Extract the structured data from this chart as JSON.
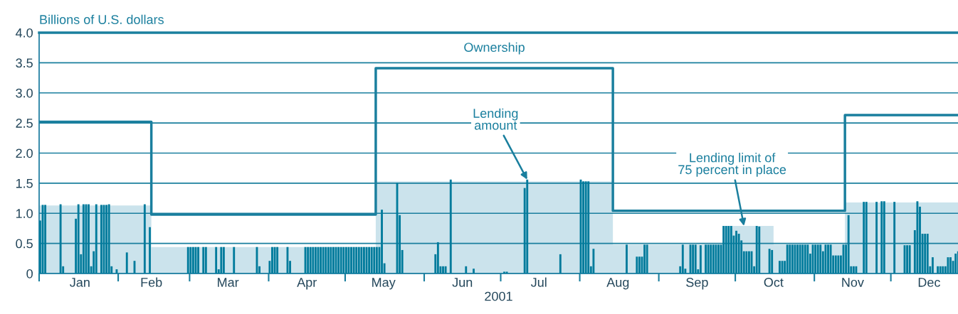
{
  "chart_data": {
    "type": "bar",
    "ylabel": "Billions of U.S. dollars",
    "xlabel": "2001",
    "xlim": [
      "2001-01-01",
      "2001-12-27T08:00"
    ],
    "xticks": [
      {
        "value": "2001-01-01",
        "label": null
      },
      {
        "value": "2001-02-01",
        "label": null
      },
      {
        "value": "2001-03-01",
        "label": null
      },
      {
        "value": "2001-04-01",
        "label": null
      },
      {
        "value": "2001-05-01",
        "label": null
      },
      {
        "value": "2001-06-01",
        "label": null
      },
      {
        "value": "2001-07-01",
        "label": null
      },
      {
        "value": "2001-08-01",
        "label": null
      },
      {
        "value": "2001-09-01",
        "label": null
      },
      {
        "value": "2001-10-01",
        "label": null
      },
      {
        "value": "2001-11-01",
        "label": null
      },
      {
        "value": "2001-12-01",
        "label": null
      },
      {
        "value": "2001-01-17",
        "label": "Jan"
      },
      {
        "value": "2001-02-14",
        "label": "Feb"
      },
      {
        "value": "2001-03-16",
        "label": "Mar"
      },
      {
        "value": "2001-04-16",
        "label": "Apr"
      },
      {
        "value": "2001-05-16",
        "label": "May"
      },
      {
        "value": "2001-06-16",
        "label": "Jun"
      },
      {
        "value": "2001-07-16",
        "label": "Jul"
      },
      {
        "value": "2001-08-16",
        "label": "Aug"
      },
      {
        "value": "2001-09-16",
        "label": "Sep"
      },
      {
        "value": "2001-10-16",
        "label": "Oct"
      },
      {
        "value": "2001-11-16",
        "label": "Nov"
      },
      {
        "value": "2001-12-16",
        "label": "Dec"
      }
    ],
    "ylim": [
      0,
      4
    ],
    "yticks": [
      0,
      0.5,
      {
        "value": 1,
        "label": "1.0"
      },
      1.5,
      {
        "value": 2,
        "label": "2.0"
      },
      2.5,
      {
        "value": 3,
        "label": "3.0"
      },
      3.5,
      {
        "value": 4,
        "label": "4.0"
      }
    ],
    "grid": "y",
    "series": [
      {
        "type": "area",
        "color": "#cbe3ec",
        "x": [
          "2001-01-01",
          "2001-02-14",
          "2001-02-14",
          "2001-05-13",
          "2001-05-13",
          "2001-08-14",
          "2001-08-14",
          "2001-09-26",
          "2001-09-26",
          "2001-10-16",
          "2001-10-16",
          "2001-11-13",
          "2001-11-13",
          "2001-12-27T08:00"
        ],
        "values": [
          1.13,
          1.13,
          0.44,
          0.44,
          1.53,
          1.53,
          0.48,
          0.48,
          0.79,
          0.79,
          0.48,
          0.48,
          1.18,
          1.18
        ]
      },
      {
        "color": "#007b9c",
        "x": [
          "2001-01-01",
          "2001-01-02",
          "2001-01-03",
          "2001-01-09",
          "2001-01-10",
          "2001-01-15",
          "2001-01-16",
          "2001-01-17",
          "2001-01-18",
          "2001-01-19",
          "2001-01-20",
          "2001-01-21",
          "2001-01-22",
          "2001-01-23",
          "2001-01-25",
          "2001-01-26",
          "2001-01-27",
          "2001-01-28",
          "2001-01-29",
          "2001-01-31",
          "2001-02-04",
          "2001-02-07",
          "2001-02-11",
          "2001-02-13",
          "2001-02-28",
          "2001-03-01",
          "2001-03-02",
          "2001-03-03",
          "2001-03-04",
          "2001-03-06",
          "2001-03-07",
          "2001-03-11",
          "2001-03-12",
          "2001-03-13",
          "2001-03-14",
          "2001-03-18",
          "2001-03-27",
          "2001-03-28",
          "2001-04-01",
          "2001-04-02",
          "2001-04-03",
          "2001-04-04",
          "2001-04-08",
          "2001-04-09",
          "2001-04-15",
          "2001-04-16",
          "2001-04-17",
          "2001-04-18",
          "2001-04-19",
          "2001-04-20",
          "2001-04-21",
          "2001-04-22",
          "2001-04-23",
          "2001-04-24",
          "2001-04-25",
          "2001-04-26",
          "2001-04-27",
          "2001-04-28",
          "2001-04-29",
          "2001-04-30",
          "2001-05-01",
          "2001-05-02",
          "2001-05-03",
          "2001-05-04",
          "2001-05-05",
          "2001-05-06",
          "2001-05-07",
          "2001-05-08",
          "2001-05-09",
          "2001-05-10",
          "2001-05-11",
          "2001-05-12",
          "2001-05-13",
          "2001-05-14",
          "2001-05-15",
          "2001-05-16",
          "2001-05-21",
          "2001-05-22",
          "2001-05-23",
          "2001-06-05",
          "2001-06-06",
          "2001-06-07",
          "2001-06-08",
          "2001-06-09",
          "2001-06-11",
          "2001-06-17",
          "2001-06-20",
          "2001-07-02",
          "2001-07-03",
          "2001-07-10",
          "2001-07-11",
          "2001-07-24",
          "2001-08-01",
          "2001-08-02",
          "2001-08-03",
          "2001-08-04",
          "2001-08-05",
          "2001-08-06",
          "2001-08-19",
          "2001-08-23",
          "2001-08-24",
          "2001-08-25",
          "2001-08-26",
          "2001-08-27",
          "2001-09-09",
          "2001-09-10",
          "2001-09-11",
          "2001-09-13",
          "2001-09-14",
          "2001-09-15",
          "2001-09-16",
          "2001-09-17",
          "2001-09-19",
          "2001-09-20",
          "2001-09-21",
          "2001-09-22",
          "2001-09-23",
          "2001-09-24",
          "2001-09-25",
          "2001-09-26",
          "2001-09-27",
          "2001-09-28",
          "2001-09-29",
          "2001-09-30",
          "2001-10-01",
          "2001-10-02",
          "2001-10-03",
          "2001-10-04",
          "2001-10-05",
          "2001-10-06",
          "2001-10-07",
          "2001-10-08",
          "2001-10-09",
          "2001-10-10",
          "2001-10-14",
          "2001-10-15",
          "2001-10-18",
          "2001-10-19",
          "2001-10-20",
          "2001-10-21",
          "2001-10-22",
          "2001-10-23",
          "2001-10-24",
          "2001-10-25",
          "2001-10-26",
          "2001-10-27",
          "2001-10-28",
          "2001-10-29",
          "2001-10-30",
          "2001-10-31",
          "2001-11-01",
          "2001-11-02",
          "2001-11-03",
          "2001-11-04",
          "2001-11-05",
          "2001-11-06",
          "2001-11-07",
          "2001-11-08",
          "2001-11-09",
          "2001-11-10",
          "2001-11-11",
          "2001-11-12",
          "2001-11-13",
          "2001-11-14",
          "2001-11-15",
          "2001-11-16",
          "2001-11-17",
          "2001-11-20",
          "2001-11-21",
          "2001-11-25",
          "2001-11-27",
          "2001-11-28",
          "2001-12-02",
          "2001-12-06",
          "2001-12-07",
          "2001-12-08",
          "2001-12-10",
          "2001-12-11",
          "2001-12-12",
          "2001-12-13",
          "2001-12-14",
          "2001-12-15",
          "2001-12-16",
          "2001-12-17",
          "2001-12-19",
          "2001-12-20",
          "2001-12-21",
          "2001-12-22",
          "2001-12-23",
          "2001-12-24",
          "2001-12-25",
          "2001-12-26",
          "2001-12-27"
        ],
        "values": [
          0.88,
          1.14,
          1.14,
          1.15,
          0.12,
          0.91,
          1.15,
          0.32,
          1.15,
          1.15,
          1.15,
          0.12,
          0.37,
          1.15,
          1.14,
          1.14,
          1.14,
          1.15,
          0.12,
          0.07,
          0.35,
          0.21,
          1.15,
          0.77,
          0.44,
          0.44,
          0.44,
          0.44,
          0.44,
          0.44,
          0.44,
          0.44,
          0.07,
          0.44,
          0.44,
          0.44,
          0.44,
          0.12,
          0.21,
          0.44,
          0.44,
          0.44,
          0.44,
          0.21,
          0.44,
          0.44,
          0.44,
          0.44,
          0.44,
          0.44,
          0.44,
          0.44,
          0.44,
          0.44,
          0.44,
          0.44,
          0.44,
          0.44,
          0.44,
          0.44,
          0.44,
          0.44,
          0.44,
          0.44,
          0.44,
          0.44,
          0.44,
          0.44,
          0.44,
          0.44,
          0.44,
          0.44,
          0.44,
          0.44,
          1.06,
          0.17,
          1.51,
          0.97,
          0.39,
          0.32,
          0.52,
          0.12,
          0.12,
          0.12,
          1.56,
          0.12,
          0.08,
          0.03,
          0.03,
          1.42,
          1.56,
          0.32,
          1.56,
          1.53,
          1.53,
          1.53,
          0.12,
          0.41,
          0.48,
          0.28,
          0.28,
          0.28,
          0.48,
          0.48,
          0.12,
          0.48,
          0.08,
          0.48,
          0.48,
          0.48,
          0.07,
          0.47,
          0.48,
          0.48,
          0.48,
          0.48,
          0.48,
          0.48,
          0.48,
          0.79,
          0.79,
          0.79,
          0.79,
          0.63,
          0.71,
          0.66,
          0.55,
          0.37,
          0.37,
          0.37,
          0.37,
          0.12,
          0.79,
          0.78,
          0.41,
          0.39,
          0.21,
          0.21,
          0.21,
          0.48,
          0.48,
          0.48,
          0.48,
          0.48,
          0.48,
          0.48,
          0.48,
          0.48,
          0.33,
          0.48,
          0.48,
          0.48,
          0.48,
          0.37,
          0.48,
          0.48,
          0.48,
          0.3,
          0.3,
          0.3,
          0.3,
          0.48,
          0.48,
          0.97,
          0.12,
          0.12,
          0.12,
          1.19,
          1.19,
          1.19,
          1.2,
          1.2,
          1.19,
          0.47,
          0.47,
          0.47,
          0.72,
          1.2,
          1.11,
          0.66,
          0.66,
          0.66,
          0.12,
          0.27,
          0.12,
          0.12,
          0.12,
          0.12,
          0.27,
          0.27,
          0.21,
          0.33,
          0.37
        ]
      },
      {
        "type": "step",
        "name": "Ownership",
        "color": "#1a7f9e",
        "x": [
          "2001-01-01",
          "2001-02-14",
          "2001-05-13",
          "2001-08-14",
          "2001-11-13",
          "2001-12-27T08:00"
        ],
        "values": [
          2.52,
          0.98,
          3.41,
          1.04,
          2.63,
          2.63
        ]
      }
    ],
    "annotations": [
      {
        "text": "Lending amount",
        "x": "2001-07-11",
        "y": 1.56
      },
      {
        "text": "Lending limit of 75 percent in place",
        "x": "2001-10-04",
        "y": 0.79
      }
    ]
  }
}
